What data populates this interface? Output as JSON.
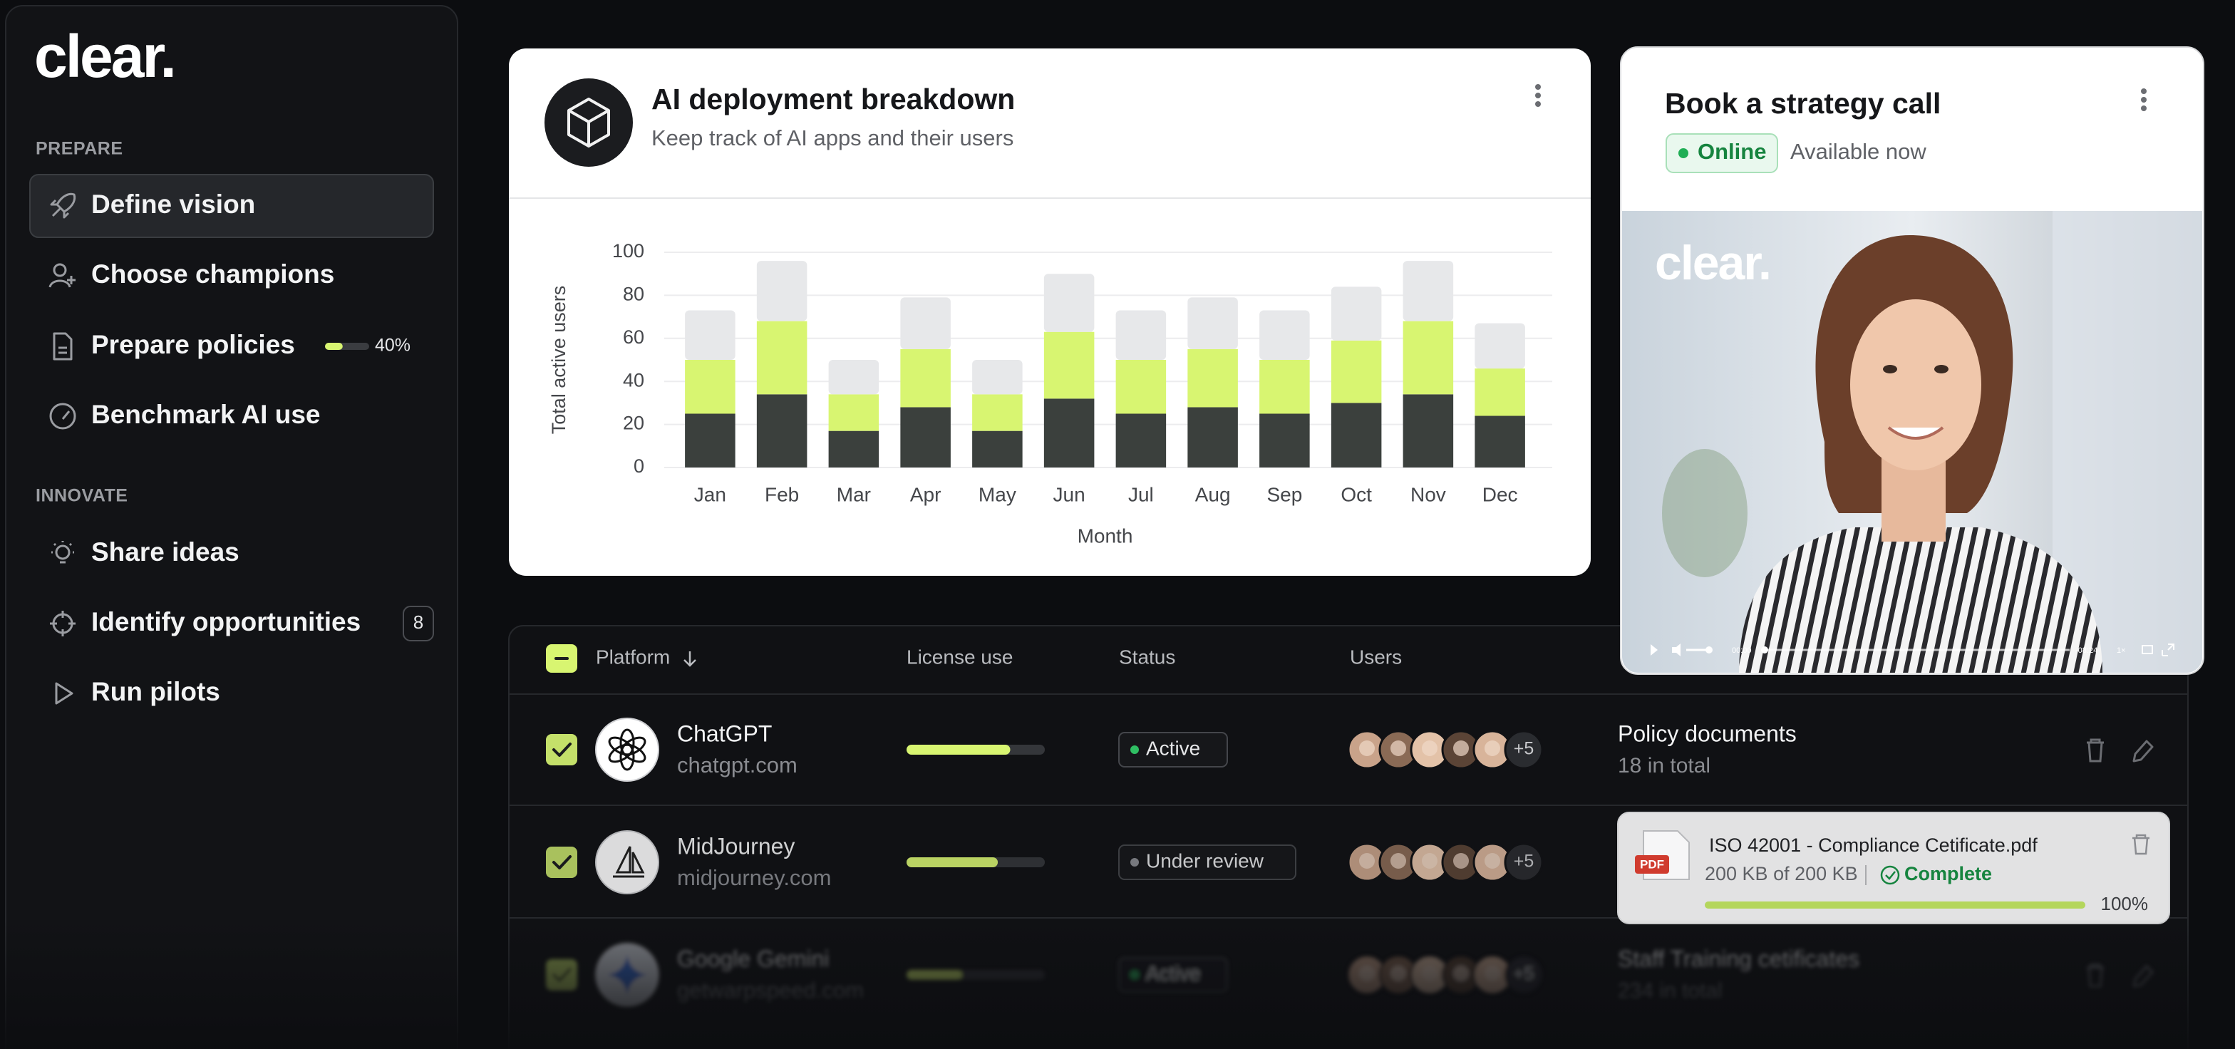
{
  "sidebar": {
    "logo": "clear.",
    "sections": [
      {
        "label": "PREPARE",
        "items": [
          {
            "label": "Define vision"
          },
          {
            "label": "Choose champions"
          },
          {
            "label": "Prepare policies",
            "progress": {
              "value": 40,
              "label": "40%"
            }
          },
          {
            "label": "Benchmark AI use"
          }
        ]
      },
      {
        "label": "INNOVATE",
        "items": [
          {
            "label": "Share ideas"
          },
          {
            "label": "Identify opportunities",
            "badge": 8
          },
          {
            "label": "Run pilots"
          }
        ]
      }
    ]
  },
  "chart_card": {
    "title": "AI deployment breakdown",
    "subtitle": "Keep track of AI apps and their users"
  },
  "chart_data": {
    "type": "bar",
    "stacked": true,
    "y_label": "Total active users",
    "x_label": "Month",
    "categories": [
      "Jan",
      "Feb",
      "Mar",
      "Apr",
      "May",
      "Jun",
      "Jul",
      "Aug",
      "Sep",
      "Oct",
      "Nov",
      "Dec"
    ],
    "series": [
      {
        "color": "#3b403d",
        "values": [
          25,
          34,
          17,
          28,
          17,
          32,
          25,
          28,
          25,
          30,
          34,
          24
        ]
      },
      {
        "color": "#d8f571",
        "values": [
          25,
          34,
          17,
          27,
          17,
          31,
          25,
          27,
          25,
          29,
          34,
          22
        ]
      },
      {
        "color": "#e7e8ea",
        "values": [
          23,
          28,
          16,
          24,
          16,
          27,
          23,
          24,
          23,
          25,
          28,
          21
        ]
      }
    ],
    "ylim": [
      0,
      100
    ],
    "yticks": [
      0,
      20,
      40,
      60,
      80,
      100
    ],
    "grid": true
  },
  "call_card": {
    "title": "Book a strategy call",
    "status": "Online",
    "availability": "Available now",
    "video": {
      "logo": "clear.",
      "time_start": "00:00",
      "time_end": "-08:24",
      "speed": "1×"
    }
  },
  "table": {
    "columns": [
      "Platform",
      "License use",
      "Status",
      "Users"
    ],
    "rows": [
      {
        "name": "ChatGPT",
        "domain": "chatgpt.com",
        "license_use": 75,
        "status": "Active",
        "extra_users": "+5",
        "document": "Policy documents",
        "document_count": "18 in total"
      },
      {
        "name": "MidJourney",
        "domain": "midjourney.com",
        "license_use": 66,
        "status": "Under review",
        "extra_users": "+5"
      },
      {
        "name": "Google Gemini",
        "domain": "getwarpspeed.com",
        "license_use": 40,
        "status": "Active",
        "extra_users": "+5",
        "document": "Staff Training cetificates",
        "document_count": "234 in total"
      }
    ]
  },
  "upload": {
    "icon": "PDF",
    "file": "ISO 42001 - Compliance Cetificate.pdf",
    "size": "200 KB of 200 KB",
    "status": "Complete",
    "progress": {
      "value": 100,
      "label": "100%"
    }
  }
}
